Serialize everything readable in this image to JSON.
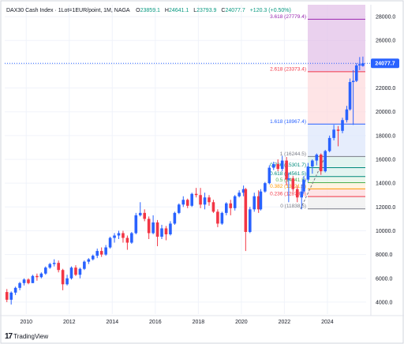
{
  "header": {
    "symbol": "DAX30 Cash Index · 1Lot=1EUR/point, 1M, NAGA",
    "open_label": "O",
    "open": "23859.1",
    "high_label": "H",
    "high": "24641.1",
    "low_label": "L",
    "low": "23793.9",
    "close_label": "C",
    "close": "24077.7",
    "change": "+120.3 (+0.50%)"
  },
  "price_tag": "24077.7",
  "footer": {
    "logo_mark": "17",
    "logo_text": "TradingView"
  },
  "colors": {
    "up": "#089981",
    "down": "#f23645",
    "candle_up": "#2962ff",
    "candle_down": "#f23645",
    "price_tag": "#2962ff",
    "grid": "#f0f3fa"
  },
  "fib_levels": [
    {
      "label": "3.618 (27779.4)",
      "value": 27779.4,
      "color": "#9c27b0"
    },
    {
      "label": "2.618 (23373.4)",
      "value": 23373.4,
      "color": "#f23645"
    },
    {
      "label": "1.618 (18967.4)",
      "value": 18967.4,
      "color": "#2962ff"
    },
    {
      "label": "1 (16244.5)",
      "value": 16244.5,
      "color": "#787b86"
    },
    {
      "label": "0.786 (15301.7)",
      "value": 15301.7,
      "color": "#00897b"
    },
    {
      "label": "0.618 (14561.5)",
      "value": 14561.5,
      "color": "#00897b"
    },
    {
      "label": "0.5 (14041.5)",
      "value": 14041.5,
      "color": "#4caf50"
    },
    {
      "label": "0.382 (13521.5)",
      "value": 13521.5,
      "color": "#ff9800"
    },
    {
      "label": "0.236 (12878.5)",
      "value": 12878.5,
      "color": "#f23645"
    },
    {
      "label": "0 (11838.5)",
      "value": 11838.5,
      "color": "#787b86"
    }
  ],
  "chart_data": {
    "type": "candlestick",
    "title": "DAX30 Cash Index · 1Lot=1EUR/point, 1M, NAGA",
    "x_ticks": [
      "2010",
      "2012",
      "2014",
      "2016",
      "2018",
      "2020",
      "2022",
      "2024"
    ],
    "y_ticks": [
      "4000.0",
      "6000.0",
      "8000.0",
      "10000.0",
      "12000.0",
      "14000.0",
      "16000.0",
      "18000.0",
      "20000.0",
      "22000.0",
      "24000.0",
      "26000.0",
      "28000.0"
    ],
    "ylim": [
      3000,
      29000
    ],
    "xlim": [
      2009.0,
      2025.8
    ],
    "series": [
      {
        "x": 2009.1,
        "o": 4850,
        "h": 5100,
        "l": 4000,
        "c": 4200
      },
      {
        "x": 2009.3,
        "o": 4200,
        "h": 4900,
        "l": 3800,
        "c": 4800
      },
      {
        "x": 2009.5,
        "o": 4800,
        "h": 5300,
        "l": 4600,
        "c": 5200
      },
      {
        "x": 2009.7,
        "o": 5200,
        "h": 5700,
        "l": 5000,
        "c": 5600
      },
      {
        "x": 2009.9,
        "o": 5600,
        "h": 6000,
        "l": 5400,
        "c": 5900
      },
      {
        "x": 2010.1,
        "o": 5900,
        "h": 6000,
        "l": 5500,
        "c": 5600
      },
      {
        "x": 2010.3,
        "o": 5600,
        "h": 6300,
        "l": 5600,
        "c": 6200
      },
      {
        "x": 2010.5,
        "o": 6200,
        "h": 6400,
        "l": 5800,
        "c": 6100
      },
      {
        "x": 2010.7,
        "o": 6100,
        "h": 6500,
        "l": 6000,
        "c": 6400
      },
      {
        "x": 2010.9,
        "o": 6400,
        "h": 7000,
        "l": 6300,
        "c": 6900
      },
      {
        "x": 2011.1,
        "o": 6900,
        "h": 7300,
        "l": 6800,
        "c": 7200
      },
      {
        "x": 2011.3,
        "o": 7200,
        "h": 7600,
        "l": 7000,
        "c": 7300
      },
      {
        "x": 2011.5,
        "o": 7300,
        "h": 7500,
        "l": 6500,
        "c": 6700
      },
      {
        "x": 2011.7,
        "o": 6700,
        "h": 6800,
        "l": 5000,
        "c": 5500
      },
      {
        "x": 2011.9,
        "o": 5500,
        "h": 6300,
        "l": 5400,
        "c": 6000
      },
      {
        "x": 2012.1,
        "o": 6000,
        "h": 7000,
        "l": 5900,
        "c": 6900
      },
      {
        "x": 2012.3,
        "o": 6900,
        "h": 7100,
        "l": 6200,
        "c": 6300
      },
      {
        "x": 2012.5,
        "o": 6300,
        "h": 6900,
        "l": 6000,
        "c": 6800
      },
      {
        "x": 2012.7,
        "o": 6800,
        "h": 7500,
        "l": 6700,
        "c": 7400
      },
      {
        "x": 2012.9,
        "o": 7400,
        "h": 7700,
        "l": 7200,
        "c": 7600
      },
      {
        "x": 2013.1,
        "o": 7600,
        "h": 8000,
        "l": 7500,
        "c": 7900
      },
      {
        "x": 2013.3,
        "o": 7900,
        "h": 8500,
        "l": 7700,
        "c": 8300
      },
      {
        "x": 2013.5,
        "o": 8300,
        "h": 8600,
        "l": 7800,
        "c": 8000
      },
      {
        "x": 2013.7,
        "o": 8000,
        "h": 8800,
        "l": 7900,
        "c": 8600
      },
      {
        "x": 2013.9,
        "o": 8600,
        "h": 9500,
        "l": 8500,
        "c": 9400
      },
      {
        "x": 2014.1,
        "o": 9400,
        "h": 9800,
        "l": 9000,
        "c": 9600
      },
      {
        "x": 2014.3,
        "o": 9600,
        "h": 10000,
        "l": 9300,
        "c": 9800
      },
      {
        "x": 2014.5,
        "o": 9800,
        "h": 10000,
        "l": 9000,
        "c": 9400
      },
      {
        "x": 2014.7,
        "o": 9400,
        "h": 9600,
        "l": 8400,
        "c": 9000
      },
      {
        "x": 2014.9,
        "o": 9000,
        "h": 9900,
        "l": 8900,
        "c": 9800
      },
      {
        "x": 2015.1,
        "o": 9800,
        "h": 11500,
        "l": 9700,
        "c": 11300
      },
      {
        "x": 2015.3,
        "o": 11300,
        "h": 12400,
        "l": 11200,
        "c": 11500
      },
      {
        "x": 2015.5,
        "o": 11500,
        "h": 11800,
        "l": 10800,
        "c": 11000
      },
      {
        "x": 2015.7,
        "o": 11000,
        "h": 11200,
        "l": 9300,
        "c": 9800
      },
      {
        "x": 2015.9,
        "o": 9800,
        "h": 11300,
        "l": 9700,
        "c": 10700
      },
      {
        "x": 2016.1,
        "o": 10700,
        "h": 10900,
        "l": 8700,
        "c": 9500
      },
      {
        "x": 2016.3,
        "o": 9500,
        "h": 10500,
        "l": 9300,
        "c": 10200
      },
      {
        "x": 2016.5,
        "o": 10200,
        "h": 10400,
        "l": 9200,
        "c": 9700
      },
      {
        "x": 2016.7,
        "o": 9700,
        "h": 10800,
        "l": 9600,
        "c": 10600
      },
      {
        "x": 2016.9,
        "o": 10600,
        "h": 11600,
        "l": 10500,
        "c": 11500
      },
      {
        "x": 2017.1,
        "o": 11500,
        "h": 12300,
        "l": 11400,
        "c": 12200
      },
      {
        "x": 2017.3,
        "o": 12200,
        "h": 12900,
        "l": 12000,
        "c": 12600
      },
      {
        "x": 2017.5,
        "o": 12600,
        "h": 12700,
        "l": 11900,
        "c": 12100
      },
      {
        "x": 2017.7,
        "o": 12100,
        "h": 13200,
        "l": 12000,
        "c": 13100
      },
      {
        "x": 2017.9,
        "o": 13100,
        "h": 13600,
        "l": 12800,
        "c": 13000
      },
      {
        "x": 2018.1,
        "o": 13000,
        "h": 13600,
        "l": 11900,
        "c": 12200
      },
      {
        "x": 2018.3,
        "o": 12200,
        "h": 13200,
        "l": 11800,
        "c": 12800
      },
      {
        "x": 2018.5,
        "o": 12800,
        "h": 13000,
        "l": 12100,
        "c": 12400
      },
      {
        "x": 2018.7,
        "o": 12400,
        "h": 12600,
        "l": 11500,
        "c": 11600
      },
      {
        "x": 2018.9,
        "o": 11600,
        "h": 11800,
        "l": 10300,
        "c": 10600
      },
      {
        "x": 2019.1,
        "o": 10600,
        "h": 11600,
        "l": 10500,
        "c": 11500
      },
      {
        "x": 2019.3,
        "o": 11500,
        "h": 12400,
        "l": 11300,
        "c": 12300
      },
      {
        "x": 2019.5,
        "o": 12300,
        "h": 12600,
        "l": 11300,
        "c": 11900
      },
      {
        "x": 2019.7,
        "o": 11900,
        "h": 13000,
        "l": 11700,
        "c": 12900
      },
      {
        "x": 2019.9,
        "o": 12900,
        "h": 13400,
        "l": 12800,
        "c": 13200
      },
      {
        "x": 2020.1,
        "o": 13200,
        "h": 13800,
        "l": 12900,
        "c": 13500
      },
      {
        "x": 2020.2,
        "o": 13500,
        "h": 13600,
        "l": 8300,
        "c": 9900
      },
      {
        "x": 2020.4,
        "o": 9900,
        "h": 12000,
        "l": 9800,
        "c": 11800
      },
      {
        "x": 2020.6,
        "o": 11800,
        "h": 13200,
        "l": 11600,
        "c": 12900
      },
      {
        "x": 2020.8,
        "o": 12900,
        "h": 13400,
        "l": 11500,
        "c": 11800
      },
      {
        "x": 2020.9,
        "o": 11800,
        "h": 13500,
        "l": 11700,
        "c": 13300
      },
      {
        "x": 2021.1,
        "o": 13300,
        "h": 14100,
        "l": 13200,
        "c": 14000
      },
      {
        "x": 2021.3,
        "o": 14000,
        "h": 15500,
        "l": 13900,
        "c": 15300
      },
      {
        "x": 2021.5,
        "o": 15300,
        "h": 15800,
        "l": 15100,
        "c": 15600
      },
      {
        "x": 2021.7,
        "o": 15600,
        "h": 16000,
        "l": 15000,
        "c": 15200
      },
      {
        "x": 2021.9,
        "o": 15200,
        "h": 16300,
        "l": 15000,
        "c": 15900
      },
      {
        "x": 2022.1,
        "o": 15900,
        "h": 16200,
        "l": 13800,
        "c": 14300
      },
      {
        "x": 2022.2,
        "o": 14300,
        "h": 14900,
        "l": 12400,
        "c": 14400
      },
      {
        "x": 2022.4,
        "o": 14400,
        "h": 14600,
        "l": 13300,
        "c": 13500
      },
      {
        "x": 2022.6,
        "o": 13500,
        "h": 13800,
        "l": 12400,
        "c": 12800
      },
      {
        "x": 2022.8,
        "o": 12800,
        "h": 13900,
        "l": 11800,
        "c": 13300
      },
      {
        "x": 2022.9,
        "o": 13300,
        "h": 14600,
        "l": 13100,
        "c": 14300
      },
      {
        "x": 2023.1,
        "o": 14300,
        "h": 15700,
        "l": 14100,
        "c": 15400
      },
      {
        "x": 2023.3,
        "o": 15400,
        "h": 16000,
        "l": 14800,
        "c": 15900
      },
      {
        "x": 2023.5,
        "o": 15900,
        "h": 16500,
        "l": 15500,
        "c": 16400
      },
      {
        "x": 2023.7,
        "o": 16400,
        "h": 16500,
        "l": 14700,
        "c": 15000
      },
      {
        "x": 2023.9,
        "o": 15000,
        "h": 16800,
        "l": 14900,
        "c": 16700
      },
      {
        "x": 2024.1,
        "o": 16700,
        "h": 18000,
        "l": 16600,
        "c": 17800
      },
      {
        "x": 2024.3,
        "o": 17800,
        "h": 18900,
        "l": 17600,
        "c": 18500
      },
      {
        "x": 2024.5,
        "o": 18500,
        "h": 18800,
        "l": 17100,
        "c": 18400
      },
      {
        "x": 2024.7,
        "o": 18400,
        "h": 19500,
        "l": 18200,
        "c": 19300
      },
      {
        "x": 2024.9,
        "o": 19300,
        "h": 20500,
        "l": 19100,
        "c": 20200
      },
      {
        "x": 2025.05,
        "o": 20200,
        "h": 22800,
        "l": 20100,
        "c": 22500
      },
      {
        "x": 2025.2,
        "o": 22500,
        "h": 23500,
        "l": 18900,
        "c": 22600
      },
      {
        "x": 2025.35,
        "o": 22600,
        "h": 24100,
        "l": 22500,
        "c": 23900
      },
      {
        "x": 2025.5,
        "o": 23900,
        "h": 24600,
        "l": 23500,
        "c": 24000
      },
      {
        "x": 2025.65,
        "o": 23859.1,
        "h": 24641.1,
        "l": 23793.9,
        "c": 24077.7
      }
    ]
  }
}
